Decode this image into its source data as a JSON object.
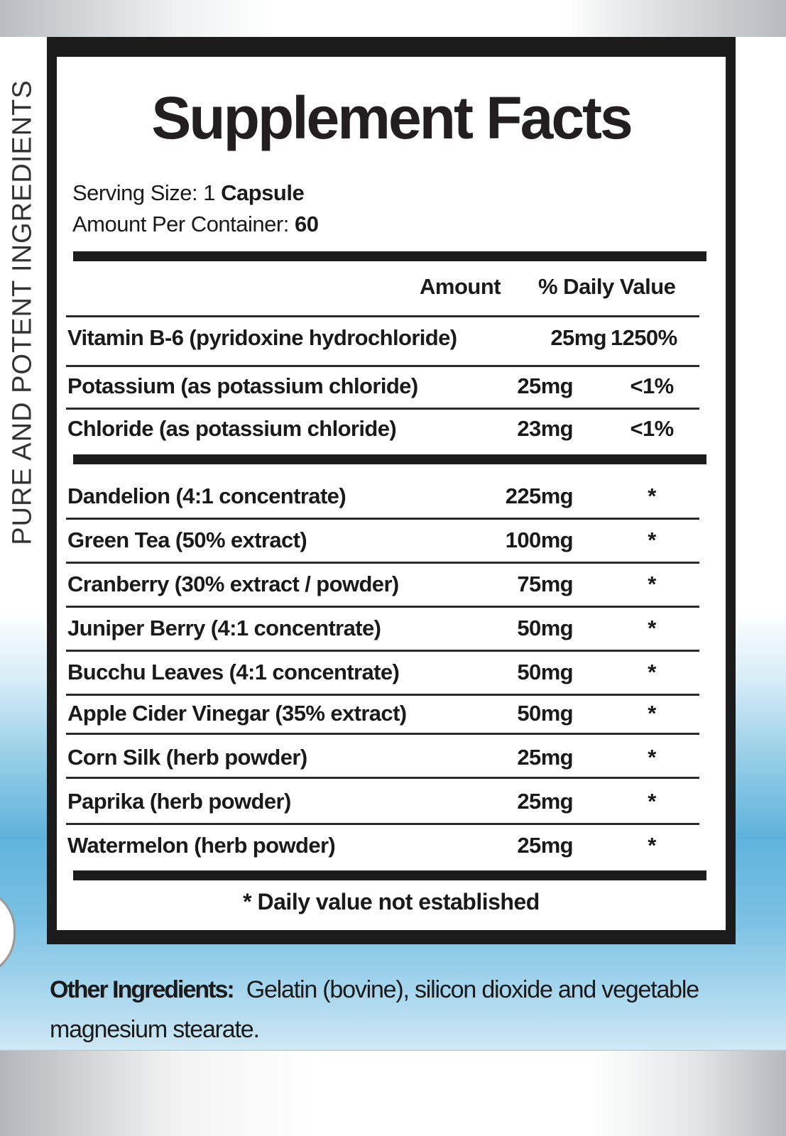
{
  "side_text": "PURE AND POTENT INGREDIENTS",
  "title": "Supplement Facts",
  "serving": {
    "size_label": "Serving Size: 1 ",
    "size_value": "Capsule",
    "container_label": "Amount Per Container: ",
    "container_value": "60"
  },
  "columns": {
    "amount": "Amount",
    "daily_value": "% Daily Value"
  },
  "nutrients": [
    {
      "name": "Vitamin B-6 (pyridoxine hydrochloride)",
      "amount": "25mg",
      "dv": "1250%"
    },
    {
      "name": "Potassium (as potassium chloride)",
      "amount": "25mg",
      "dv": "<1%"
    },
    {
      "name": "Chloride (as potassium chloride)",
      "amount": "23mg",
      "dv": "<1%"
    }
  ],
  "ingredients": [
    {
      "name": "Dandelion (4:1 concentrate)",
      "amount": "225mg",
      "dv": "*"
    },
    {
      "name": "Green Tea (50% extract)",
      "amount": "100mg",
      "dv": "*"
    },
    {
      "name": "Cranberry (30% extract / powder)",
      "amount": "75mg",
      "dv": "*"
    },
    {
      "name": "Juniper Berry (4:1 concentrate)",
      "amount": "50mg",
      "dv": "*"
    },
    {
      "name": "Bucchu Leaves (4:1 concentrate)",
      "amount": "50mg",
      "dv": "*"
    },
    {
      "name": "Apple Cider Vinegar (35% extract)",
      "amount": "50mg",
      "dv": "*"
    },
    {
      "name": "Corn Silk (herb powder)",
      "amount": "25mg",
      "dv": "*"
    },
    {
      "name": "Paprika (herb powder)",
      "amount": "25mg",
      "dv": "*"
    },
    {
      "name": "Watermelon (herb powder)",
      "amount": "25mg",
      "dv": "*"
    }
  ],
  "footnote": "* Daily value not established",
  "other_ingredients": {
    "label": "Other Ingredients:",
    "text": "Gelatin (bovine), silicon dioxide and vegetable magnesium stearate."
  }
}
